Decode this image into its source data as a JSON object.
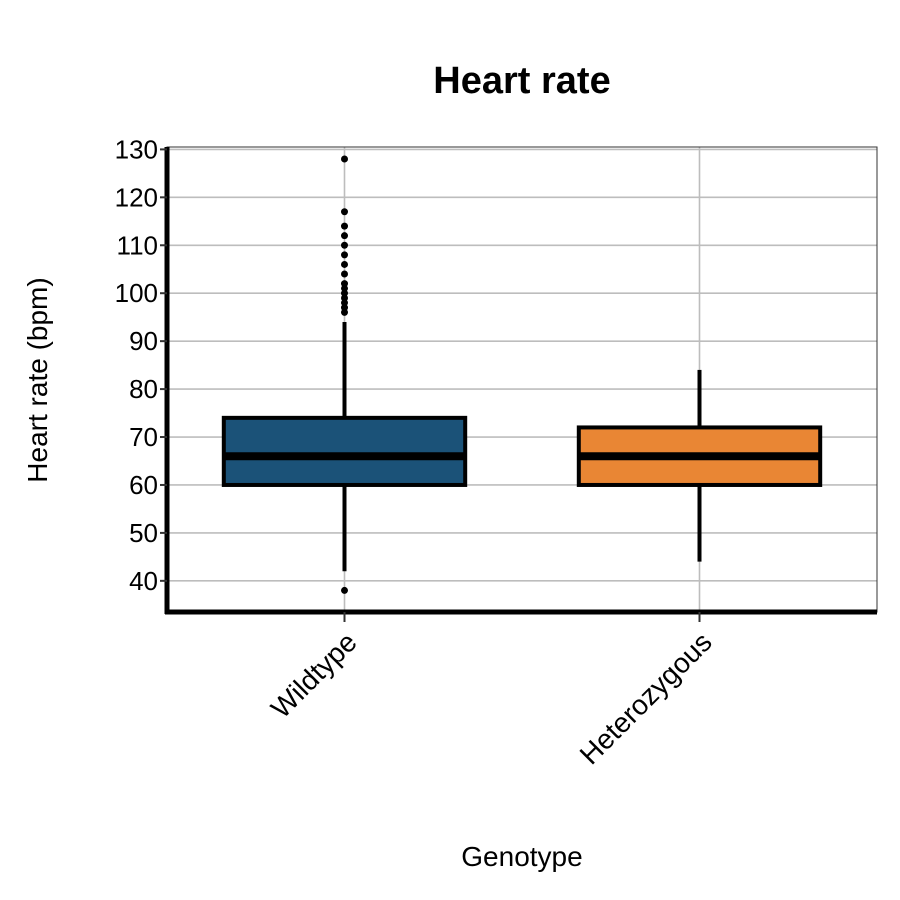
{
  "chart_data": {
    "type": "box",
    "title": "Heart rate",
    "xlabel": "Genotype",
    "ylabel": "Heart rate (bpm)",
    "ylim": [
      33.5,
      130.5
    ],
    "yticks": [
      40,
      50,
      60,
      70,
      80,
      90,
      100,
      110,
      120,
      130
    ],
    "grid": true,
    "categories": [
      "Wildtype",
      "Heterozygous"
    ],
    "boxes": [
      {
        "category": "Wildtype",
        "color": "#1b5278",
        "whisker_low": 42,
        "q1": 60,
        "median": 66,
        "q3": 74,
        "whisker_high": 94,
        "outliers": [
          38,
          96,
          97,
          98,
          99,
          100,
          101,
          102,
          104,
          106,
          108,
          110,
          112,
          114,
          117,
          128
        ]
      },
      {
        "category": "Heterozygous",
        "color": "#e98634",
        "whisker_low": 44,
        "q1": 60,
        "median": 66,
        "q3": 72,
        "whisker_high": 84,
        "outliers": []
      }
    ]
  }
}
